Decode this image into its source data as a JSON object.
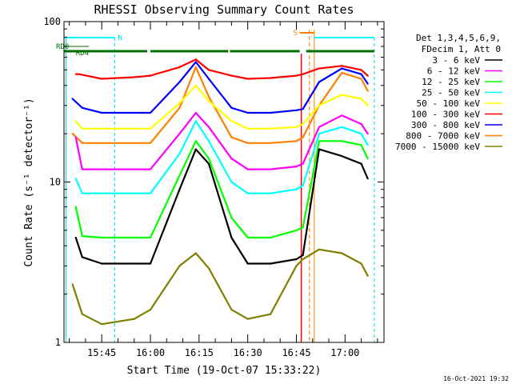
{
  "chart_data": {
    "type": "line",
    "title": "RHESSI Observing Summary Count Rates",
    "xlabel": "Start Time (19-Oct-07 15:33:22)",
    "ylabel": "Count Rate (s⁻¹ detector⁻¹)",
    "yscale": "log",
    "ylim": [
      1,
      100
    ],
    "xlim": [
      "15:33:22",
      "17:12:00"
    ],
    "x_ticks": [
      "15:45",
      "16:00",
      "16:15",
      "16:30",
      "16:45",
      "17:00"
    ],
    "y_ticks": [
      "1",
      "10",
      "100"
    ],
    "timestamp": "16-Oct-2021 19:32",
    "legend_position": "right",
    "legend_header": [
      "Det 1,3,4,5,6,9,",
      "FDecim 1, Att 0"
    ],
    "flags": [
      {
        "label": "RD0",
        "color": "#007000"
      },
      {
        "label": "RD4",
        "color": "#007000"
      },
      {
        "label": "N",
        "color": "#00e0e0"
      },
      {
        "label": "S",
        "color": "#ff8000"
      }
    ],
    "background": "#ffffff",
    "series": [
      {
        "name": "3 - 6 keV",
        "color": "#000000",
        "x": [
          "15:37",
          "15:39",
          "15:45",
          "15:55",
          "16:00",
          "16:09",
          "16:14",
          "16:18",
          "16:25",
          "16:30",
          "16:37",
          "16:45",
          "16:47",
          "16:52",
          "16:59",
          "17:05",
          "17:07"
        ],
        "y": [
          4.5,
          3.4,
          3.1,
          3.1,
          3.1,
          9,
          16,
          13,
          4.5,
          3.1,
          3.1,
          3.3,
          3.5,
          16,
          14.5,
          13,
          10.5
        ]
      },
      {
        "name": "6 - 12 keV",
        "color": "#ff00ff",
        "x": [
          "15:37",
          "15:39",
          "15:45",
          "15:55",
          "16:00",
          "16:09",
          "16:14",
          "16:18",
          "16:25",
          "16:30",
          "16:37",
          "16:45",
          "16:47",
          "16:52",
          "16:59",
          "17:05",
          "17:07"
        ],
        "y": [
          19,
          12,
          12,
          12,
          12,
          20,
          27,
          22,
          14,
          12,
          12,
          12.5,
          13,
          22,
          26,
          23,
          20
        ]
      },
      {
        "name": "12 - 25 keV",
        "color": "#00ff00",
        "x": [
          "15:37",
          "15:39",
          "15:45",
          "15:55",
          "16:00",
          "16:09",
          "16:14",
          "16:18",
          "16:25",
          "16:30",
          "16:37",
          "16:45",
          "16:47",
          "16:52",
          "16:59",
          "17:05",
          "17:07"
        ],
        "y": [
          7,
          4.6,
          4.5,
          4.5,
          4.5,
          11,
          18,
          14,
          6,
          4.5,
          4.5,
          5,
          5.2,
          18,
          18,
          17,
          14
        ]
      },
      {
        "name": "25 - 50 keV",
        "color": "#00ffff",
        "x": [
          "15:37",
          "15:39",
          "15:45",
          "15:55",
          "16:00",
          "16:09",
          "16:14",
          "16:18",
          "16:25",
          "16:30",
          "16:37",
          "16:45",
          "16:47",
          "16:52",
          "16:59",
          "17:05",
          "17:07"
        ],
        "y": [
          10.5,
          8.5,
          8.5,
          8.5,
          8.5,
          15,
          24,
          18,
          10,
          8.5,
          8.5,
          9,
          9.5,
          20,
          22,
          20,
          17
        ]
      },
      {
        "name": "50 - 100 keV",
        "color": "#ffff00",
        "x": [
          "15:37",
          "15:39",
          "15:45",
          "15:55",
          "16:00",
          "16:09",
          "16:14",
          "16:18",
          "16:25",
          "16:30",
          "16:37",
          "16:45",
          "16:47",
          "16:52",
          "16:59",
          "17:05",
          "17:07"
        ],
        "y": [
          24,
          21.5,
          21.5,
          21.5,
          21.5,
          31,
          40,
          32,
          24,
          21.5,
          21.5,
          22,
          23,
          30,
          35,
          33,
          30
        ]
      },
      {
        "name": "100 - 300 keV",
        "color": "#ff0000",
        "x": [
          "15:37",
          "15:38",
          "15:45",
          "15:55",
          "16:00",
          "16:09",
          "16:14",
          "16:18",
          "16:25",
          "16:30",
          "16:37",
          "16:45",
          "16:47",
          "16:52",
          "16:59",
          "17:05",
          "17:07"
        ],
        "y": [
          47,
          47,
          44,
          45,
          46,
          52,
          58,
          50,
          46,
          44,
          44.5,
          46,
          47,
          51,
          53,
          50,
          46
        ]
      },
      {
        "name": "300 - 800 keV",
        "color": "#0000ff",
        "x": [
          "15:36",
          "15:39",
          "15:45",
          "15:55",
          "16:00",
          "16:09",
          "16:14",
          "16:18",
          "16:25",
          "16:30",
          "16:37",
          "16:45",
          "16:47",
          "16:52",
          "16:59",
          "17:05",
          "17:07"
        ],
        "y": [
          33,
          29,
          27,
          27,
          27,
          42,
          56,
          44,
          29,
          27,
          27,
          28,
          28.5,
          42,
          51,
          47,
          41
        ]
      },
      {
        "name": "800 - 7000 keV",
        "color": "#ff8000",
        "x": [
          "15:36",
          "15:39",
          "15:45",
          "15:55",
          "16:00",
          "16:09",
          "16:14",
          "16:18",
          "16:25",
          "16:30",
          "16:37",
          "16:45",
          "16:47",
          "16:52",
          "16:59",
          "17:05",
          "17:07"
        ],
        "y": [
          20,
          17.5,
          17.5,
          17.5,
          17.5,
          29,
          52,
          34,
          19,
          17.5,
          17.5,
          18,
          19,
          30,
          48,
          44,
          37
        ]
      },
      {
        "name": "7000 - 15000 keV",
        "color": "#808000",
        "x": [
          "15:36",
          "15:39",
          "15:45",
          "15:55",
          "16:00",
          "16:09",
          "16:14",
          "16:18",
          "16:25",
          "16:30",
          "16:37",
          "16:45",
          "16:47",
          "16:52",
          "16:59",
          "17:05",
          "17:07"
        ],
        "y": [
          2.3,
          1.5,
          1.3,
          1.4,
          1.6,
          3,
          3.6,
          2.9,
          1.6,
          1.4,
          1.5,
          3,
          3.3,
          3.8,
          3.6,
          3.1,
          2.6
        ]
      }
    ]
  }
}
